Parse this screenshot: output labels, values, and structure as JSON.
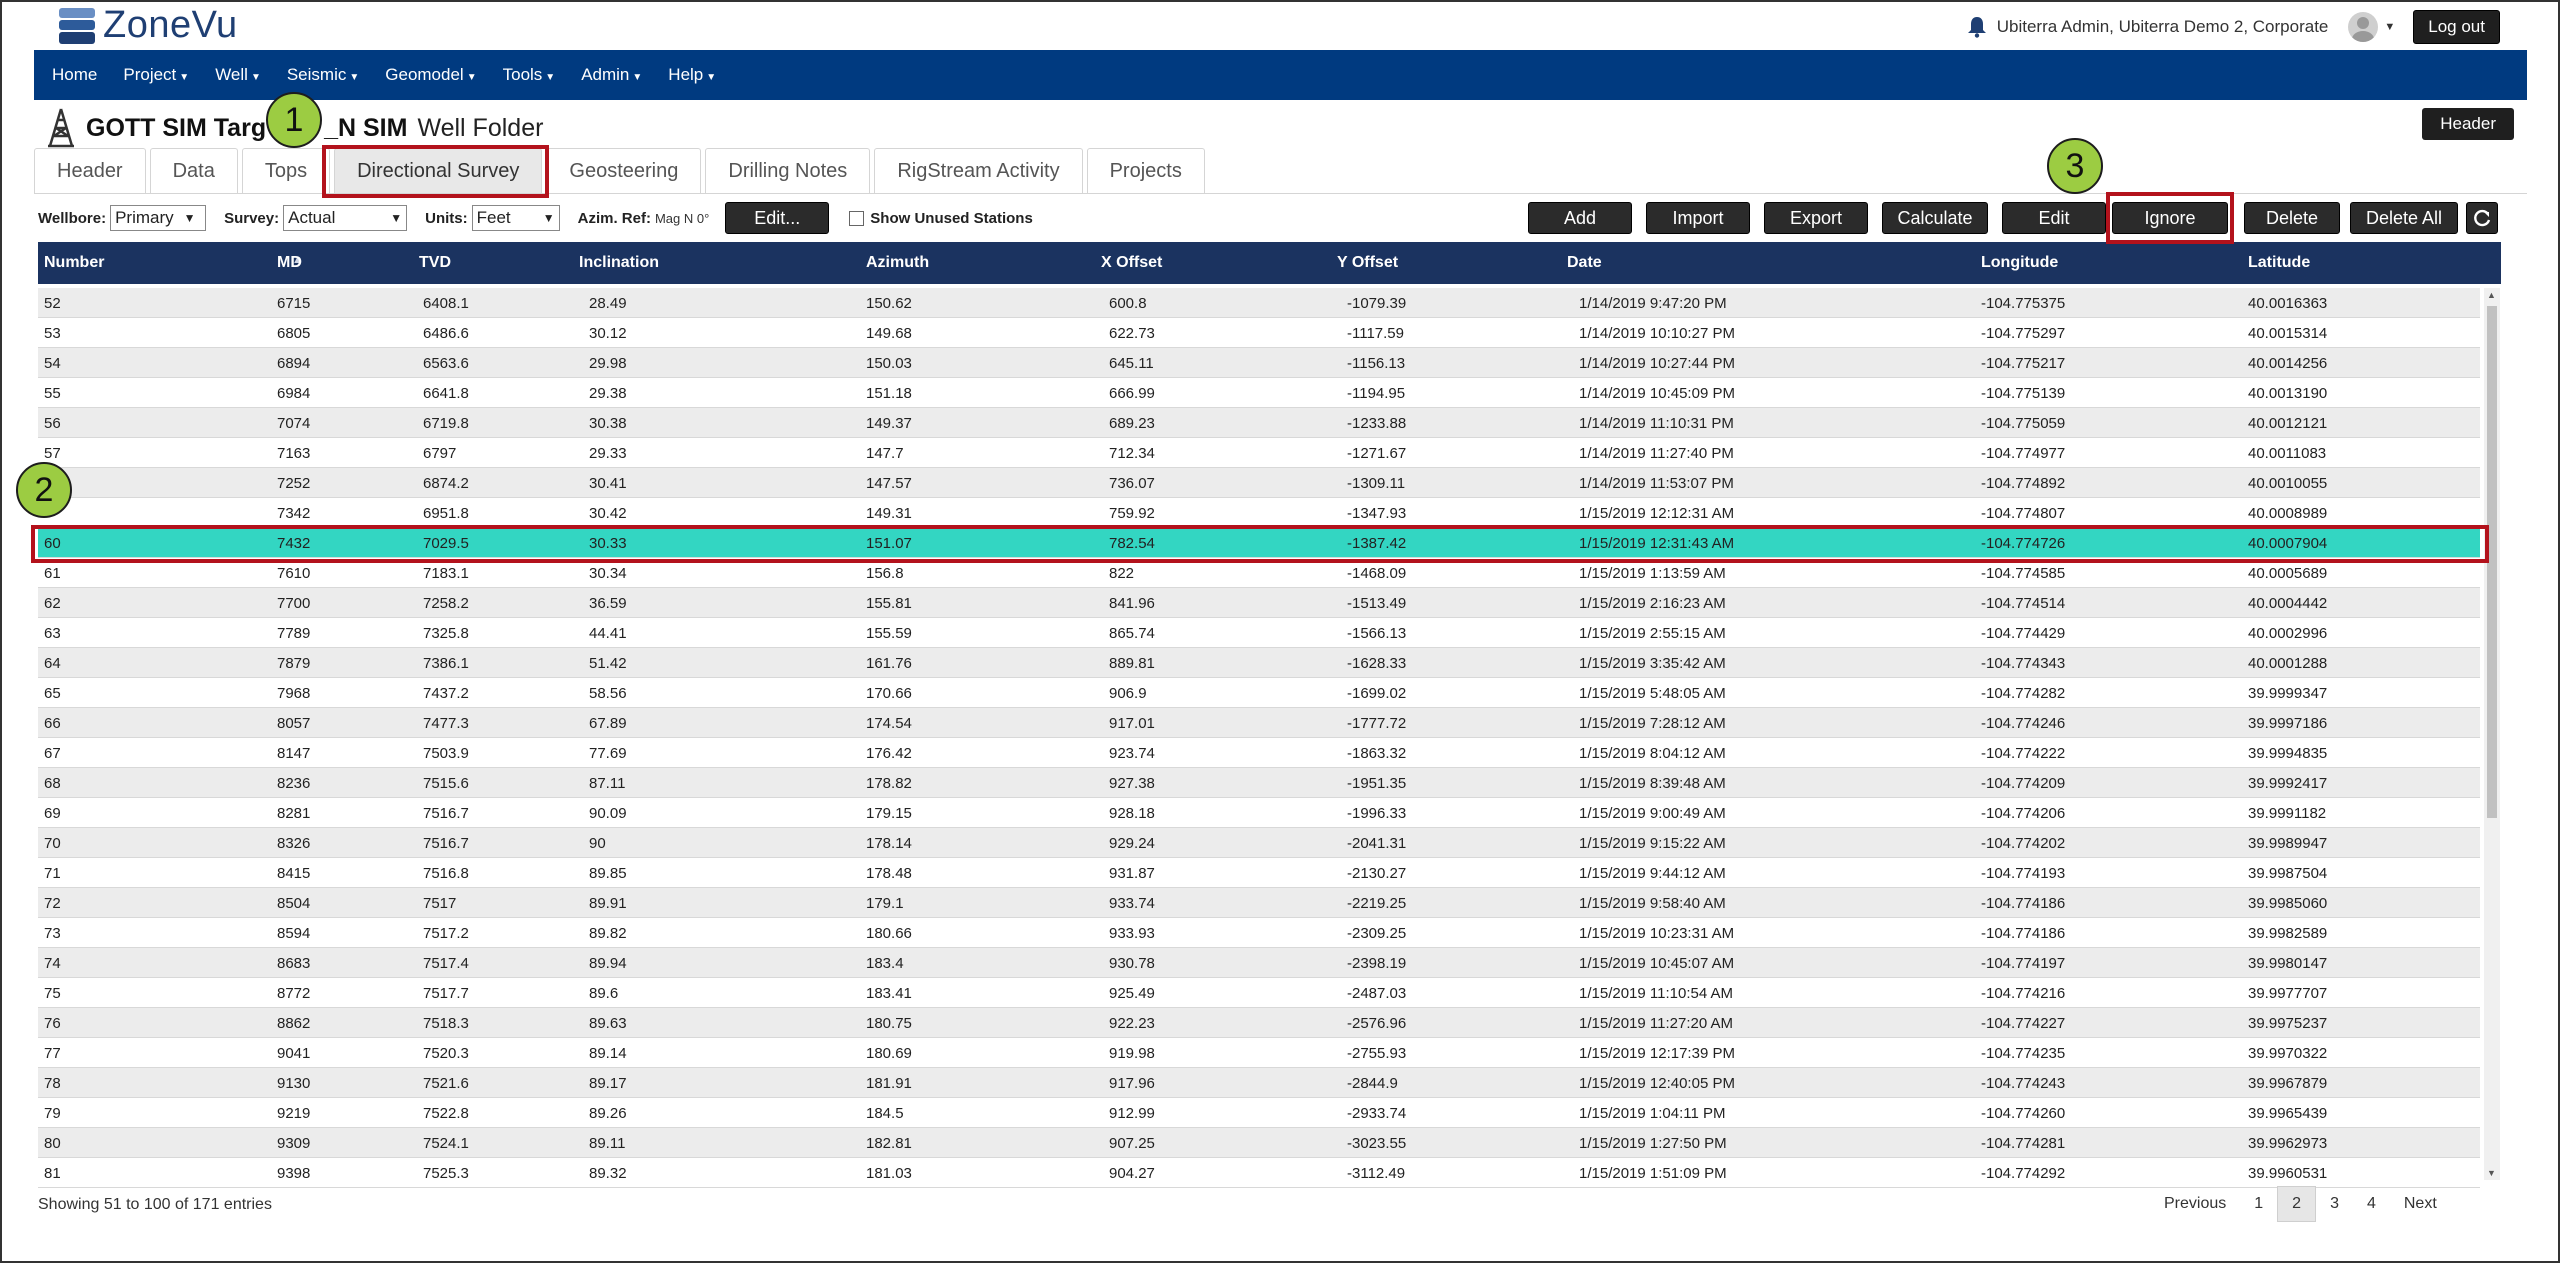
{
  "app": {
    "logo_text": "ZoneVu"
  },
  "user": {
    "label": "Ubiterra Admin, Ubiterra Demo 2, Corporate",
    "logout_label": "Log out"
  },
  "nav": [
    {
      "label": "Home",
      "dropdown": false
    },
    {
      "label": "Project",
      "dropdown": true
    },
    {
      "label": "Well",
      "dropdown": true
    },
    {
      "label": "Seismic",
      "dropdown": true
    },
    {
      "label": "Geomodel",
      "dropdown": true
    },
    {
      "label": "Tools",
      "dropdown": true
    },
    {
      "label": "Admin",
      "dropdown": true
    },
    {
      "label": "Help",
      "dropdown": true
    }
  ],
  "well": {
    "name_prefix": "GOTT SIM Targ",
    "name_suffix": "_N SIM",
    "folder_label": "Well Folder",
    "header_button": "Header"
  },
  "tabs": [
    {
      "label": "Header",
      "active": false
    },
    {
      "label": "Data",
      "active": false
    },
    {
      "label": "Tops",
      "active": false
    },
    {
      "label": "Directional Survey",
      "active": true
    },
    {
      "label": "Geosteering",
      "active": false
    },
    {
      "label": "Drilling Notes",
      "active": false
    },
    {
      "label": "RigStream Activity",
      "active": false
    },
    {
      "label": "Projects",
      "active": false
    }
  ],
  "toolbar": {
    "wellbore_label": "Wellbore:",
    "wellbore_value": "Primary",
    "survey_label": "Survey:",
    "survey_value": "Actual",
    "units_label": "Units:",
    "units_value": "Feet",
    "azim_label": "Azim. Ref:",
    "azim_value": "Mag N 0°",
    "edit_button": "Edit...",
    "unused_label": "Show Unused Stations",
    "actions": [
      "Add",
      "Import",
      "Export",
      "Calculate",
      "Edit",
      "Ignore",
      "Delete",
      "Delete All"
    ]
  },
  "table": {
    "columns": [
      "Number",
      "MD",
      "TVD",
      "Inclination",
      "Azimuth",
      "X Offset",
      "Y Offset",
      "Date",
      "Longitude",
      "Latitude"
    ],
    "selected_number": "60",
    "rows": [
      [
        "52",
        "6715",
        "6408.1",
        "28.49",
        "150.62",
        "600.8",
        "-1079.39",
        "1/14/2019 9:47:20 PM",
        "-104.775375",
        "40.0016363"
      ],
      [
        "53",
        "6805",
        "6486.6",
        "30.12",
        "149.68",
        "622.73",
        "-1117.59",
        "1/14/2019 10:10:27 PM",
        "-104.775297",
        "40.0015314"
      ],
      [
        "54",
        "6894",
        "6563.6",
        "29.98",
        "150.03",
        "645.11",
        "-1156.13",
        "1/14/2019 10:27:44 PM",
        "-104.775217",
        "40.0014256"
      ],
      [
        "55",
        "6984",
        "6641.8",
        "29.38",
        "151.18",
        "666.99",
        "-1194.95",
        "1/14/2019 10:45:09 PM",
        "-104.775139",
        "40.0013190"
      ],
      [
        "56",
        "7074",
        "6719.8",
        "30.38",
        "149.37",
        "689.23",
        "-1233.88",
        "1/14/2019 11:10:31 PM",
        "-104.775059",
        "40.0012121"
      ],
      [
        "57",
        "7163",
        "6797",
        "29.33",
        "147.7",
        "712.34",
        "-1271.67",
        "1/14/2019 11:27:40 PM",
        "-104.774977",
        "40.0011083"
      ],
      [
        "",
        "7252",
        "6874.2",
        "30.41",
        "147.57",
        "736.07",
        "-1309.11",
        "1/14/2019 11:53:07 PM",
        "-104.774892",
        "40.0010055"
      ],
      [
        "",
        "7342",
        "6951.8",
        "30.42",
        "149.31",
        "759.92",
        "-1347.93",
        "1/15/2019 12:12:31 AM",
        "-104.774807",
        "40.0008989"
      ],
      [
        "60",
        "7432",
        "7029.5",
        "30.33",
        "151.07",
        "782.54",
        "-1387.42",
        "1/15/2019 12:31:43 AM",
        "-104.774726",
        "40.0007904"
      ],
      [
        "61",
        "7610",
        "7183.1",
        "30.34",
        "156.8",
        "822",
        "-1468.09",
        "1/15/2019 1:13:59 AM",
        "-104.774585",
        "40.0005689"
      ],
      [
        "62",
        "7700",
        "7258.2",
        "36.59",
        "155.81",
        "841.96",
        "-1513.49",
        "1/15/2019 2:16:23 AM",
        "-104.774514",
        "40.0004442"
      ],
      [
        "63",
        "7789",
        "7325.8",
        "44.41",
        "155.59",
        "865.74",
        "-1566.13",
        "1/15/2019 2:55:15 AM",
        "-104.774429",
        "40.0002996"
      ],
      [
        "64",
        "7879",
        "7386.1",
        "51.42",
        "161.76",
        "889.81",
        "-1628.33",
        "1/15/2019 3:35:42 AM",
        "-104.774343",
        "40.0001288"
      ],
      [
        "65",
        "7968",
        "7437.2",
        "58.56",
        "170.66",
        "906.9",
        "-1699.02",
        "1/15/2019 5:48:05 AM",
        "-104.774282",
        "39.9999347"
      ],
      [
        "66",
        "8057",
        "7477.3",
        "67.89",
        "174.54",
        "917.01",
        "-1777.72",
        "1/15/2019 7:28:12 AM",
        "-104.774246",
        "39.9997186"
      ],
      [
        "67",
        "8147",
        "7503.9",
        "77.69",
        "176.42",
        "923.74",
        "-1863.32",
        "1/15/2019 8:04:12 AM",
        "-104.774222",
        "39.9994835"
      ],
      [
        "68",
        "8236",
        "7515.6",
        "87.11",
        "178.82",
        "927.38",
        "-1951.35",
        "1/15/2019 8:39:48 AM",
        "-104.774209",
        "39.9992417"
      ],
      [
        "69",
        "8281",
        "7516.7",
        "90.09",
        "179.15",
        "928.18",
        "-1996.33",
        "1/15/2019 9:00:49 AM",
        "-104.774206",
        "39.9991182"
      ],
      [
        "70",
        "8326",
        "7516.7",
        "90",
        "178.14",
        "929.24",
        "-2041.31",
        "1/15/2019 9:15:22 AM",
        "-104.774202",
        "39.9989947"
      ],
      [
        "71",
        "8415",
        "7516.8",
        "89.85",
        "178.48",
        "931.87",
        "-2130.27",
        "1/15/2019 9:44:12 AM",
        "-104.774193",
        "39.9987504"
      ],
      [
        "72",
        "8504",
        "7517",
        "89.91",
        "179.1",
        "933.74",
        "-2219.25",
        "1/15/2019 9:58:40 AM",
        "-104.774186",
        "39.9985060"
      ],
      [
        "73",
        "8594",
        "7517.2",
        "89.82",
        "180.66",
        "933.93",
        "-2309.25",
        "1/15/2019 10:23:31 AM",
        "-104.774186",
        "39.9982589"
      ],
      [
        "74",
        "8683",
        "7517.4",
        "89.94",
        "183.4",
        "930.78",
        "-2398.19",
        "1/15/2019 10:45:07 AM",
        "-104.774197",
        "39.9980147"
      ],
      [
        "75",
        "8772",
        "7517.7",
        "89.6",
        "183.41",
        "925.49",
        "-2487.03",
        "1/15/2019 11:10:54 AM",
        "-104.774216",
        "39.9977707"
      ],
      [
        "76",
        "8862",
        "7518.3",
        "89.63",
        "180.75",
        "922.23",
        "-2576.96",
        "1/15/2019 11:27:20 AM",
        "-104.774227",
        "39.9975237"
      ],
      [
        "77",
        "9041",
        "7520.3",
        "89.14",
        "180.69",
        "919.98",
        "-2755.93",
        "1/15/2019 12:17:39 PM",
        "-104.774235",
        "39.9970322"
      ],
      [
        "78",
        "9130",
        "7521.6",
        "89.17",
        "181.91",
        "917.96",
        "-2844.9",
        "1/15/2019 12:40:05 PM",
        "-104.774243",
        "39.9967879"
      ],
      [
        "79",
        "9219",
        "7522.8",
        "89.26",
        "184.5",
        "912.99",
        "-2933.74",
        "1/15/2019 1:04:11 PM",
        "-104.774260",
        "39.9965439"
      ],
      [
        "80",
        "9309",
        "7524.1",
        "89.11",
        "182.81",
        "907.25",
        "-3023.55",
        "1/15/2019 1:27:50 PM",
        "-104.774281",
        "39.9962973"
      ],
      [
        "81",
        "9398",
        "7525.3",
        "89.32",
        "181.03",
        "904.27",
        "-3112.49",
        "1/15/2019 1:51:09 PM",
        "-104.774292",
        "39.9960531"
      ]
    ]
  },
  "footer": {
    "entries_info": "Showing 51 to 100 of 171 entries",
    "pager": [
      "Previous",
      "1",
      "2",
      "3",
      "4",
      "Next"
    ],
    "current_page": "2"
  },
  "callouts": [
    "1",
    "2",
    "3"
  ],
  "colors": {
    "nav": "#003a80",
    "table_header": "#1b3360",
    "selected_row": "#33d6c2",
    "highlight_box": "#b3121c",
    "callout": "#9ccc42"
  },
  "icons": {
    "bell": "bell-icon",
    "user": "user-avatar-icon",
    "refresh": "refresh-icon",
    "rig": "oil-rig-icon",
    "logo": "zonevu-logo-icon"
  }
}
